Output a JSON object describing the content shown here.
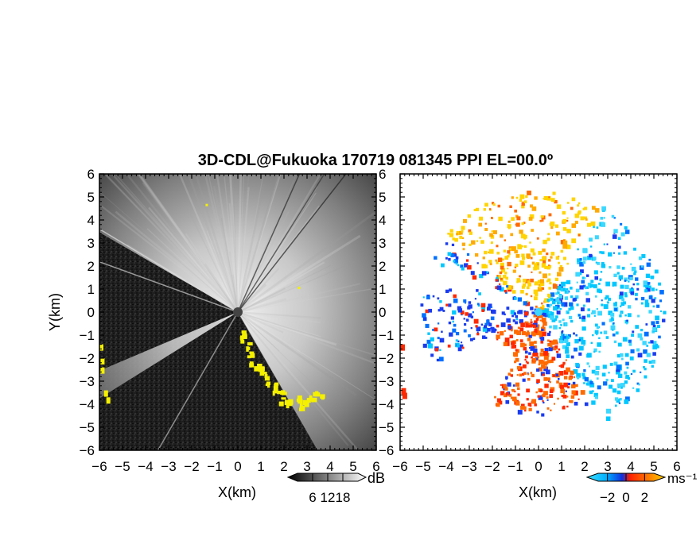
{
  "title": "3D-CDL@Fukuoka 170719 081345 PPI EL=00.0º",
  "chart_data": [
    {
      "type": "heatmap",
      "panel": "reflectivity",
      "xlabel": "X(km)",
      "ylabel": "Y(km)",
      "xlim": [
        -6,
        6
      ],
      "ylim": [
        -6,
        6
      ],
      "x_ticks": [
        "−6",
        "−5",
        "−4",
        "−3",
        "−2",
        "−1",
        "0",
        "1",
        "2",
        "3",
        "4",
        "5",
        "6"
      ],
      "y_ticks": [
        "6",
        "5",
        "4",
        "3",
        "2",
        "1",
        "0",
        "−1",
        "−2",
        "−3",
        "−4",
        "−5",
        "−6"
      ],
      "colorbar": {
        "unit": "dB",
        "tick_labels": [
          "6",
          "12",
          "18"
        ],
        "range": [
          0,
          24
        ]
      },
      "highlight_color": "#f4f000",
      "bright_sector_deg": [
        135,
        225
      ],
      "dark_sectors_deg": [
        [
          150,
          203
        ],
        [
          212,
          300
        ]
      ]
    },
    {
      "type": "heatmap",
      "panel": "radial-velocity",
      "xlabel": "X(km)",
      "xlim": [
        -6,
        6
      ],
      "ylim": [
        -6,
        6
      ],
      "x_ticks": [
        "−6",
        "−5",
        "−4",
        "−3",
        "−2",
        "−1",
        "0",
        "1",
        "2",
        "3",
        "4",
        "5",
        "6"
      ],
      "y_ticks": [
        "6",
        "5",
        "4",
        "3",
        "2",
        "1",
        "0",
        "−1",
        "−2",
        "−3",
        "−4",
        "−5",
        "−6"
      ],
      "colorbar": {
        "unit": "ms⁻¹",
        "tick_labels": [
          "−2",
          "0",
          "2"
        ],
        "range": [
          -3,
          3
        ]
      },
      "palette": [
        "#00c8ff",
        "#3cd8ff",
        "#0070ff",
        "#1a3cf0",
        "#ff2800",
        "#ff6a00",
        "#ffaa00",
        "#ffd400"
      ]
    }
  ]
}
